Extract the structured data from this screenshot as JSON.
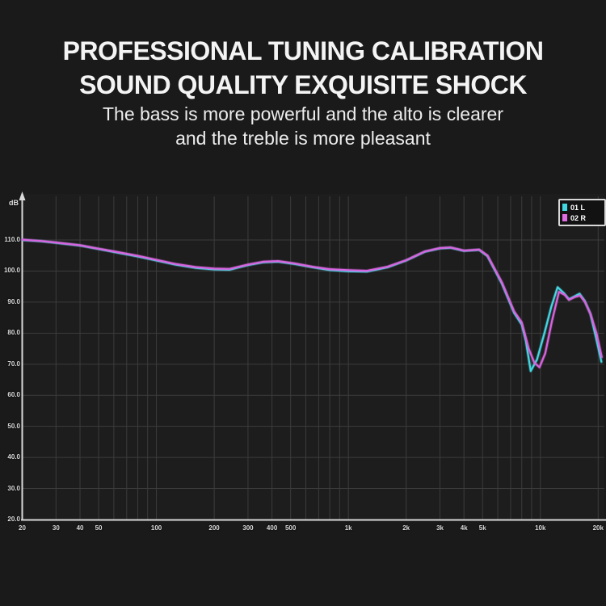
{
  "header": {
    "title_line1": "PROFESSIONAL TUNING CALIBRATION",
    "title_line2": "SOUND QUALITY EXQUISITE SHOCK",
    "subtitle_line1": "The bass is more powerful and the alto is clearer",
    "subtitle_line2": "and the treble is more pleasant"
  },
  "chart_data": {
    "type": "line",
    "title": "",
    "xlabel": "",
    "ylabel": "dB",
    "x_scale": "log",
    "x_range_hz": [
      20,
      20000
    ],
    "y_range_db": [
      20,
      110
    ],
    "grid": true,
    "legend_position": "top-right",
    "colors": {
      "background": "#1a1a1a",
      "plot_background": "#1d1d1d",
      "gridline": "#3c3c3c",
      "axis": "#d9d9d9",
      "left_channel": "#45d6e2",
      "right_channel": "#d863de"
    },
    "x_ticks": [
      {
        "label": "20",
        "value": 20
      },
      {
        "label": "30",
        "value": 30
      },
      {
        "label": "40",
        "value": 40
      },
      {
        "label": "50",
        "value": 50
      },
      {
        "label": "100",
        "value": 100
      },
      {
        "label": "200",
        "value": 200
      },
      {
        "label": "300",
        "value": 300
      },
      {
        "label": "400",
        "value": 400
      },
      {
        "label": "500",
        "value": 500
      },
      {
        "label": "1k",
        "value": 1000
      },
      {
        "label": "2k",
        "value": 2000
      },
      {
        "label": "3k",
        "value": 3000
      },
      {
        "label": "4k",
        "value": 4000
      },
      {
        "label": "5k",
        "value": 5000
      },
      {
        "label": "10k",
        "value": 10000
      },
      {
        "label": "20k",
        "value": 20000
      }
    ],
    "y_ticks": [
      {
        "label": "110.0",
        "value": 110
      },
      {
        "label": "100.0",
        "value": 100
      },
      {
        "label": "90.0",
        "value": 90
      },
      {
        "label": "80.0",
        "value": 80
      },
      {
        "label": "70.0",
        "value": 70
      },
      {
        "label": "60.0",
        "value": 60
      },
      {
        "label": "50.0",
        "value": 50
      },
      {
        "label": "40.0",
        "value": 40
      },
      {
        "label": "30.0",
        "value": 30
      },
      {
        "label": "20.0",
        "value": 20
      }
    ],
    "x_gridlines_hz": [
      20,
      30,
      40,
      50,
      60,
      70,
      80,
      90,
      100,
      200,
      300,
      400,
      500,
      600,
      700,
      800,
      900,
      1000,
      2000,
      3000,
      4000,
      5000,
      6000,
      7000,
      8000,
      9000,
      10000,
      20000
    ],
    "y_gridlines_db": [
      30,
      40,
      50,
      60,
      70,
      80,
      90,
      100,
      110
    ],
    "legend": [
      {
        "label": "01 L",
        "color": "#3fd8e0"
      },
      {
        "label": "02 R",
        "color": "#e06ce4"
      }
    ],
    "series": [
      {
        "name": "01 L",
        "color": "#45d6e2",
        "points": [
          [
            20,
            110
          ],
          [
            25,
            109.6
          ],
          [
            30,
            109.1
          ],
          [
            40,
            108.2
          ],
          [
            50,
            107.1
          ],
          [
            63,
            105.9
          ],
          [
            80,
            104.7
          ],
          [
            100,
            103.4
          ],
          [
            125,
            102.1
          ],
          [
            160,
            101.0
          ],
          [
            200,
            100.5
          ],
          [
            240,
            100.4
          ],
          [
            300,
            101.9
          ],
          [
            360,
            102.8
          ],
          [
            430,
            103.0
          ],
          [
            520,
            102.3
          ],
          [
            650,
            101.2
          ],
          [
            800,
            100.3
          ],
          [
            1000,
            99.9
          ],
          [
            1250,
            99.8
          ],
          [
            1600,
            101.2
          ],
          [
            2000,
            103.4
          ],
          [
            2500,
            106.2
          ],
          [
            3000,
            107.3
          ],
          [
            3400,
            107.5
          ],
          [
            4000,
            106.5
          ],
          [
            4800,
            106.8
          ],
          [
            5300,
            104.8
          ],
          [
            6300,
            96.0
          ],
          [
            7300,
            86.5
          ],
          [
            8000,
            82.8
          ],
          [
            8400,
            77.5
          ],
          [
            8900,
            67.8
          ],
          [
            9600,
            71.5
          ],
          [
            10500,
            80.0
          ],
          [
            11400,
            88.5
          ],
          [
            12300,
            94.8
          ],
          [
            13300,
            92.8
          ],
          [
            14100,
            90.9
          ],
          [
            15000,
            91.8
          ],
          [
            16000,
            92.7
          ],
          [
            17000,
            90.5
          ],
          [
            18200,
            86.3
          ],
          [
            19500,
            78.5
          ],
          [
            20800,
            70.8
          ]
        ]
      },
      {
        "name": "02 R",
        "color": "#d863de",
        "points": [
          [
            20,
            110.1
          ],
          [
            25,
            109.7
          ],
          [
            30,
            109.2
          ],
          [
            40,
            108.3
          ],
          [
            50,
            107.2
          ],
          [
            63,
            106.1
          ],
          [
            80,
            104.9
          ],
          [
            100,
            103.6
          ],
          [
            125,
            102.3
          ],
          [
            160,
            101.3
          ],
          [
            200,
            100.8
          ],
          [
            240,
            100.7
          ],
          [
            300,
            102.1
          ],
          [
            360,
            103.0
          ],
          [
            430,
            103.2
          ],
          [
            520,
            102.5
          ],
          [
            650,
            101.4
          ],
          [
            800,
            100.6
          ],
          [
            1000,
            100.3
          ],
          [
            1250,
            100.1
          ],
          [
            1600,
            101.4
          ],
          [
            2000,
            103.5
          ],
          [
            2500,
            106.3
          ],
          [
            3000,
            107.4
          ],
          [
            3400,
            107.6
          ],
          [
            4000,
            106.6
          ],
          [
            4800,
            106.9
          ],
          [
            5300,
            105.0
          ],
          [
            6300,
            96.4
          ],
          [
            7300,
            87.0
          ],
          [
            8000,
            83.5
          ],
          [
            8700,
            75.0
          ],
          [
            9300,
            70.5
          ],
          [
            9900,
            69.0
          ],
          [
            10600,
            73.5
          ],
          [
            11500,
            84.0
          ],
          [
            12500,
            93.3
          ],
          [
            13400,
            92.3
          ],
          [
            14100,
            90.7
          ],
          [
            15100,
            91.6
          ],
          [
            16100,
            92.1
          ],
          [
            17100,
            90.0
          ],
          [
            18300,
            86.0
          ],
          [
            19600,
            80.0
          ],
          [
            20900,
            72.3
          ]
        ]
      }
    ]
  }
}
